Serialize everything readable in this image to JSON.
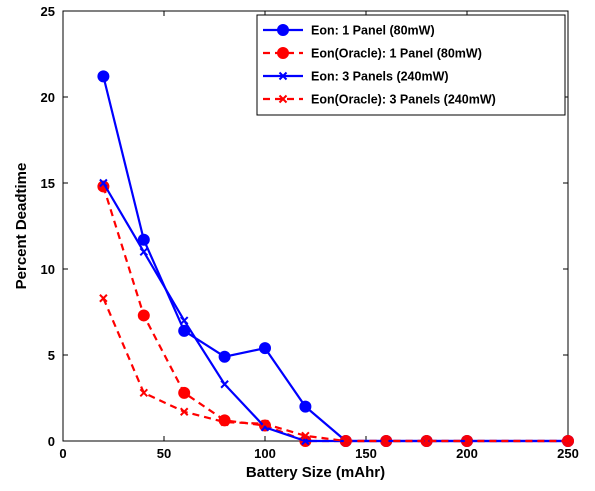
{
  "chart_data": {
    "type": "line",
    "title": "",
    "xlabel": "Battery Size (mAhr)",
    "ylabel": "Percent Deadtime",
    "xlim": [
      0,
      250
    ],
    "ylim": [
      0,
      25
    ],
    "xticks": [
      0,
      50,
      100,
      150,
      200,
      250
    ],
    "yticks": [
      0,
      5,
      10,
      15,
      20,
      25
    ],
    "grid": false,
    "legend_position": "top-right",
    "x": [
      20,
      40,
      60,
      80,
      100,
      120,
      140,
      160,
      180,
      200,
      250
    ],
    "series": [
      {
        "name": "Eon: 1 Panel (80mW)",
        "color": "#0000ff",
        "line_style": "solid",
        "marker": "circle",
        "values": [
          21.2,
          11.7,
          6.4,
          4.9,
          5.4,
          2.0,
          0,
          0,
          0,
          0,
          0
        ]
      },
      {
        "name": "Eon(Oracle): 1 Panel (80mW)",
        "color": "#ff0000",
        "line_style": "dashed",
        "marker": "circle",
        "values": [
          14.8,
          7.3,
          2.8,
          1.2,
          0.9,
          0,
          0,
          0,
          0,
          0,
          0
        ]
      },
      {
        "name": "Eon: 3 Panels (240mW)",
        "color": "#0000ff",
        "line_style": "solid",
        "marker": "x",
        "values": [
          15.0,
          11.0,
          7.0,
          3.3,
          0.8,
          0,
          0,
          0,
          0,
          0,
          0
        ]
      },
      {
        "name": "Eon(Oracle): 3 Panels (240mW)",
        "color": "#ff0000",
        "line_style": "dashed",
        "marker": "x",
        "values": [
          8.3,
          2.8,
          1.7,
          1.1,
          1.0,
          0.3,
          0,
          0,
          0,
          0,
          0
        ]
      }
    ]
  }
}
